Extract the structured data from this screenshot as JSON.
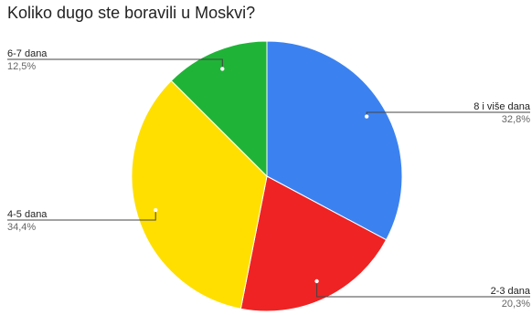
{
  "chart_data": {
    "type": "pie",
    "title": "Koliko dugo ste boravili u Moskvi?",
    "slices": [
      {
        "label": "8 i više dana",
        "value": 32.8,
        "percent_label": "32,8%",
        "color": "#3b82f0"
      },
      {
        "label": "2-3 dana",
        "value": 20.3,
        "percent_label": "20,3%",
        "color": "#ef2323"
      },
      {
        "label": "4-5 dana",
        "value": 34.4,
        "percent_label": "34,4%",
        "color": "#ffdf00"
      },
      {
        "label": "6-7 dana",
        "value": 12.5,
        "percent_label": "12,5%",
        "color": "#1fb437"
      }
    ],
    "legend": "none"
  }
}
